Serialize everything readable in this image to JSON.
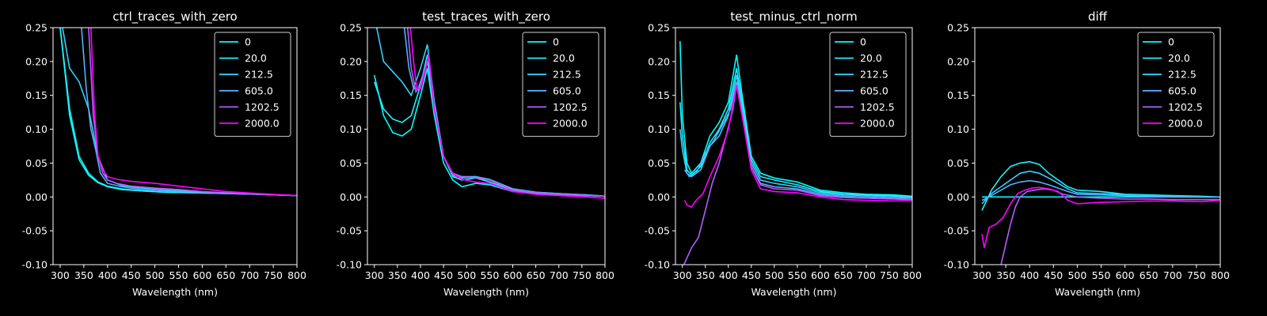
{
  "chart_data": [
    {
      "type": "line",
      "title": "ctrl_traces_with_zero",
      "xlabel": "Wavelength (nm)",
      "ylabel": "",
      "xlim": [
        285,
        800
      ],
      "ylim": [
        -0.1,
        0.25
      ],
      "xticks": [
        300,
        350,
        400,
        450,
        500,
        550,
        600,
        650,
        700,
        750,
        800
      ],
      "yticks": [
        -0.1,
        -0.05,
        0.0,
        0.05,
        0.1,
        0.15,
        0.2,
        0.25
      ],
      "legend": "top-right",
      "series": [
        {
          "name": "0",
          "color": "#00ffff",
          "x": [
            300,
            320,
            340,
            360,
            380,
            400,
            430,
            470,
            520,
            580,
            650,
            720,
            800
          ],
          "y": [
            0.25,
            0.13,
            0.06,
            0.035,
            0.022,
            0.016,
            0.012,
            0.009,
            0.007,
            0.006,
            0.005,
            0.004,
            0.002
          ]
        },
        {
          "name": "20.0",
          "color": "#1ef0ff",
          "x": [
            300,
            320,
            340,
            360,
            380,
            400,
            430,
            470,
            520,
            580,
            650,
            720,
            800
          ],
          "y": [
            0.25,
            0.12,
            0.055,
            0.032,
            0.021,
            0.015,
            0.011,
            0.009,
            0.007,
            0.006,
            0.005,
            0.004,
            0.002
          ]
        },
        {
          "name": "212.5",
          "color": "#33d0ff",
          "x": [
            305,
            320,
            340,
            360,
            380,
            400,
            430,
            470,
            520,
            580,
            650,
            720,
            800
          ],
          "y": [
            0.25,
            0.19,
            0.17,
            0.13,
            0.06,
            0.025,
            0.017,
            0.013,
            0.011,
            0.008,
            0.006,
            0.004,
            0.002
          ]
        },
        {
          "name": "605.0",
          "color": "#55b0ff",
          "x": [
            345,
            355,
            365,
            375,
            385,
            400,
            430,
            470,
            520,
            580,
            650,
            720,
            800
          ],
          "y": [
            0.25,
            0.16,
            0.1,
            0.07,
            0.035,
            0.02,
            0.015,
            0.011,
            0.009,
            0.007,
            0.005,
            0.004,
            0.002
          ]
        },
        {
          "name": "1202.5",
          "color": "#b060ff",
          "x": [
            360,
            370,
            380,
            390,
            400,
            420,
            450,
            500,
            550,
            600,
            650,
            720,
            800
          ],
          "y": [
            0.25,
            0.12,
            0.06,
            0.035,
            0.025,
            0.02,
            0.016,
            0.013,
            0.011,
            0.008,
            0.006,
            0.004,
            0.002
          ]
        },
        {
          "name": "2000.0",
          "color": "#ff00ff",
          "x": [
            365,
            372,
            380,
            390,
            400,
            420,
            450,
            500,
            550,
            600,
            650,
            720,
            800
          ],
          "y": [
            0.25,
            0.13,
            0.06,
            0.04,
            0.03,
            0.026,
            0.023,
            0.02,
            0.016,
            0.012,
            0.008,
            0.005,
            0.002
          ]
        }
      ]
    },
    {
      "type": "line",
      "title": "test_traces_with_zero",
      "xlabel": "Wavelength (nm)",
      "ylabel": "",
      "xlim": [
        285,
        800
      ],
      "ylim": [
        -0.1,
        0.25
      ],
      "xticks": [
        300,
        350,
        400,
        450,
        500,
        550,
        600,
        650,
        700,
        750,
        800
      ],
      "yticks": [
        -0.1,
        -0.05,
        0.0,
        0.05,
        0.1,
        0.15,
        0.2,
        0.25
      ],
      "legend": "top-right",
      "series": [
        {
          "name": "0",
          "color": "#00ffff",
          "x": [
            300,
            320,
            340,
            360,
            380,
            400,
            415,
            430,
            450,
            470,
            490,
            520,
            550,
            600,
            650,
            700,
            760,
            800
          ],
          "y": [
            0.18,
            0.12,
            0.095,
            0.09,
            0.1,
            0.15,
            0.19,
            0.12,
            0.05,
            0.025,
            0.015,
            0.02,
            0.018,
            0.008,
            0.005,
            0.003,
            0.002,
            0.001
          ]
        },
        {
          "name": "20.0",
          "color": "#1ef0ff",
          "x": [
            300,
            320,
            340,
            360,
            380,
            400,
            415,
            430,
            450,
            470,
            490,
            520,
            550,
            600,
            650,
            700,
            760,
            800
          ],
          "y": [
            0.17,
            0.13,
            0.115,
            0.11,
            0.12,
            0.165,
            0.21,
            0.14,
            0.06,
            0.03,
            0.025,
            0.028,
            0.022,
            0.01,
            0.006,
            0.004,
            0.003,
            0.001
          ]
        },
        {
          "name": "212.5",
          "color": "#33d0ff",
          "x": [
            305,
            320,
            340,
            360,
            380,
            400,
            415,
            430,
            450,
            470,
            490,
            520,
            550,
            600,
            650,
            700,
            760,
            800
          ],
          "y": [
            0.25,
            0.2,
            0.185,
            0.17,
            0.15,
            0.19,
            0.225,
            0.14,
            0.06,
            0.032,
            0.028,
            0.03,
            0.025,
            0.012,
            0.007,
            0.005,
            0.003,
            0.001
          ]
        },
        {
          "name": "605.0",
          "color": "#55b0ff",
          "x": [
            365,
            375,
            385,
            395,
            405,
            415,
            430,
            450,
            470,
            490,
            520,
            550,
            600,
            650,
            700,
            760,
            800
          ],
          "y": [
            0.25,
            0.19,
            0.16,
            0.16,
            0.18,
            0.2,
            0.13,
            0.06,
            0.034,
            0.03,
            0.03,
            0.026,
            0.012,
            0.007,
            0.005,
            0.003,
            0.001
          ]
        },
        {
          "name": "1202.5",
          "color": "#b060ff",
          "x": [
            372,
            380,
            390,
            400,
            410,
            418,
            430,
            450,
            470,
            490,
            520,
            550,
            600,
            650,
            700,
            760,
            800
          ],
          "y": [
            0.25,
            0.19,
            0.155,
            0.165,
            0.19,
            0.205,
            0.13,
            0.06,
            0.035,
            0.03,
            0.028,
            0.025,
            0.01,
            0.006,
            0.004,
            0.002,
            0.001
          ]
        },
        {
          "name": "2000.0",
          "color": "#ff00ff",
          "x": [
            378,
            385,
            392,
            400,
            410,
            418,
            430,
            450,
            470,
            490,
            520,
            550,
            600,
            650,
            700,
            760,
            800
          ],
          "y": [
            0.25,
            0.2,
            0.16,
            0.16,
            0.185,
            0.21,
            0.13,
            0.06,
            0.034,
            0.026,
            0.022,
            0.02,
            0.008,
            0.004,
            0.002,
            0.0,
            -0.002
          ]
        }
      ]
    },
    {
      "type": "line",
      "title": "test_minus_ctrl_norm",
      "xlabel": "Wavelength (nm)",
      "ylabel": "",
      "xlim": [
        285,
        800
      ],
      "ylim": [
        -0.1,
        0.25
      ],
      "xticks": [
        300,
        350,
        400,
        450,
        500,
        550,
        600,
        650,
        700,
        750,
        800
      ],
      "yticks": [
        -0.1,
        -0.05,
        0.0,
        0.05,
        0.1,
        0.15,
        0.2,
        0.25
      ],
      "legend": "top-right",
      "series": [
        {
          "name": "0",
          "color": "#00ffff",
          "x": [
            295,
            300,
            310,
            320,
            340,
            360,
            380,
            400,
            418,
            430,
            450,
            470,
            500,
            550,
            600,
            650,
            700,
            760,
            800
          ],
          "y": [
            0.23,
            0.12,
            0.05,
            0.035,
            0.05,
            0.09,
            0.11,
            0.14,
            0.21,
            0.15,
            0.06,
            0.035,
            0.028,
            0.022,
            0.01,
            0.006,
            0.004,
            0.003,
            0.001
          ]
        },
        {
          "name": "20.0",
          "color": "#1ef0ff",
          "x": [
            295,
            300,
            310,
            320,
            340,
            360,
            380,
            400,
            418,
            430,
            450,
            470,
            500,
            550,
            600,
            650,
            700,
            760,
            800
          ],
          "y": [
            0.14,
            0.09,
            0.04,
            0.032,
            0.045,
            0.08,
            0.1,
            0.13,
            0.19,
            0.14,
            0.055,
            0.03,
            0.025,
            0.018,
            0.008,
            0.004,
            0.003,
            0.002,
            0.0
          ]
        },
        {
          "name": "212.5",
          "color": "#33d0ff",
          "x": [
            295,
            300,
            310,
            320,
            340,
            360,
            380,
            400,
            418,
            430,
            450,
            470,
            500,
            550,
            600,
            650,
            700,
            760,
            800
          ],
          "y": [
            0.1,
            0.07,
            0.035,
            0.03,
            0.04,
            0.075,
            0.09,
            0.12,
            0.18,
            0.13,
            0.05,
            0.025,
            0.02,
            0.015,
            0.006,
            0.003,
            0.002,
            0.0,
            -0.001
          ]
        },
        {
          "name": "605.0",
          "color": "#55b0ff",
          "x": [
            305,
            315,
            330,
            350,
            370,
            390,
            405,
            418,
            430,
            450,
            470,
            500,
            550,
            600,
            650,
            700,
            760,
            800
          ],
          "y": [
            0.04,
            0.03,
            0.035,
            0.065,
            0.085,
            0.11,
            0.13,
            0.17,
            0.12,
            0.045,
            0.02,
            0.015,
            0.012,
            0.004,
            0.001,
            0.0,
            -0.002,
            -0.002
          ]
        },
        {
          "name": "1202.5",
          "color": "#b060ff",
          "x": [
            300,
            310,
            320,
            335,
            350,
            365,
            380,
            395,
            410,
            418,
            430,
            450,
            470,
            500,
            550,
            600,
            650,
            700,
            760,
            800
          ],
          "y": [
            -0.105,
            -0.09,
            -0.075,
            -0.06,
            -0.02,
            0.02,
            0.05,
            0.09,
            0.13,
            0.165,
            0.12,
            0.045,
            0.018,
            0.012,
            0.01,
            0.002,
            -0.001,
            -0.002,
            -0.003,
            -0.004
          ]
        },
        {
          "name": "2000.0",
          "color": "#ff00ff",
          "x": [
            305,
            310,
            320,
            330,
            345,
            360,
            380,
            400,
            418,
            430,
            450,
            470,
            500,
            550,
            600,
            650,
            700,
            760,
            800
          ],
          "y": [
            -0.005,
            -0.012,
            -0.015,
            -0.005,
            0.005,
            0.03,
            0.06,
            0.1,
            0.165,
            0.12,
            0.04,
            0.012,
            0.008,
            0.006,
            0.0,
            -0.004,
            -0.005,
            -0.006,
            -0.005
          ]
        }
      ]
    },
    {
      "type": "line",
      "title": "diff",
      "xlabel": "Wavelength (nm)",
      "ylabel": "",
      "xlim": [
        285,
        800
      ],
      "ylim": [
        -0.1,
        0.25
      ],
      "xticks": [
        300,
        350,
        400,
        450,
        500,
        550,
        600,
        650,
        700,
        750,
        800
      ],
      "yticks": [
        -0.1,
        -0.05,
        0.0,
        0.05,
        0.1,
        0.15,
        0.2,
        0.25
      ],
      "legend": "top-right",
      "series": [
        {
          "name": "0",
          "color": "#00ffff",
          "x": [
            300,
            800
          ],
          "y": [
            0.0,
            0.0
          ]
        },
        {
          "name": "20.0",
          "color": "#1ef0ff",
          "x": [
            300,
            320,
            340,
            360,
            380,
            400,
            420,
            440,
            460,
            480,
            500,
            550,
            600,
            650,
            700,
            760,
            800
          ],
          "y": [
            -0.02,
            0.01,
            0.03,
            0.045,
            0.05,
            0.052,
            0.048,
            0.035,
            0.025,
            0.015,
            0.01,
            0.008,
            0.004,
            0.003,
            0.002,
            0.001,
            0.0
          ]
        },
        {
          "name": "212.5",
          "color": "#33d0ff",
          "x": [
            300,
            320,
            340,
            360,
            380,
            400,
            420,
            440,
            460,
            480,
            500,
            550,
            600,
            650,
            700,
            760,
            800
          ],
          "y": [
            -0.01,
            0.005,
            0.015,
            0.025,
            0.035,
            0.038,
            0.035,
            0.028,
            0.02,
            0.012,
            0.006,
            0.005,
            0.003,
            0.002,
            0.001,
            0.0,
            0.0
          ]
        },
        {
          "name": "605.0",
          "color": "#55b0ff",
          "x": [
            300,
            320,
            340,
            360,
            380,
            400,
            420,
            440,
            460,
            480,
            500,
            550,
            600,
            650,
            700,
            760,
            800
          ],
          "y": [
            -0.005,
            0.002,
            0.01,
            0.018,
            0.022,
            0.024,
            0.022,
            0.018,
            0.013,
            0.008,
            0.004,
            0.003,
            0.002,
            0.001,
            0.0,
            0.0,
            0.0
          ]
        },
        {
          "name": "1202.5",
          "color": "#b060ff",
          "x": [
            340,
            350,
            360,
            370,
            380,
            395,
            410,
            430,
            450,
            470,
            500,
            550,
            600,
            650,
            700,
            760,
            800
          ],
          "y": [
            -0.1,
            -0.07,
            -0.04,
            -0.015,
            0.0,
            0.008,
            0.01,
            0.012,
            0.01,
            0.004,
            0.0,
            -0.002,
            -0.003,
            -0.003,
            -0.004,
            -0.004,
            -0.004
          ]
        },
        {
          "name": "2000.0",
          "color": "#ff00ff",
          "x": [
            300,
            305,
            315,
            330,
            345,
            360,
            375,
            390,
            405,
            420,
            440,
            460,
            480,
            500,
            550,
            600,
            650,
            700,
            760,
            800
          ],
          "y": [
            -0.055,
            -0.075,
            -0.045,
            -0.04,
            -0.03,
            -0.01,
            0.005,
            0.01,
            0.013,
            0.014,
            0.012,
            0.008,
            -0.005,
            -0.01,
            -0.008,
            -0.007,
            -0.006,
            -0.006,
            -0.007,
            -0.005
          ]
        }
      ]
    }
  ]
}
